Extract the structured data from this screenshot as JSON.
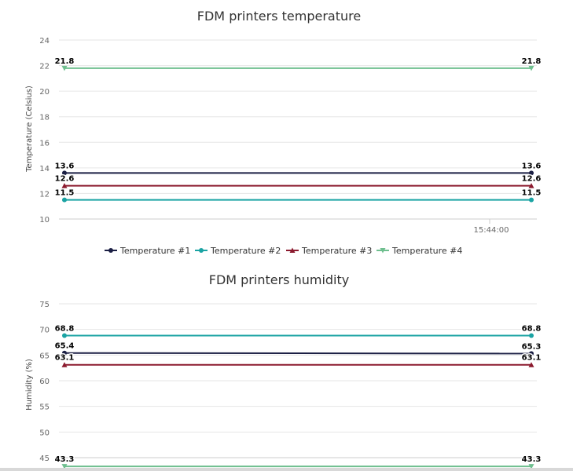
{
  "chart_data": [
    {
      "type": "line",
      "title": "FDM printers temperature",
      "ylabel": "Temperature (Celsius)",
      "xlabel": "",
      "ylim": [
        10,
        24
      ],
      "y_ticks": [
        10,
        12,
        14,
        16,
        18,
        20,
        22,
        24
      ],
      "x_tick_labels": [
        "15:44:00"
      ],
      "grid": true,
      "legend_position": "bottom",
      "series": [
        {
          "name": "Temperature #1",
          "values": [
            13.6,
            13.6
          ],
          "color": "#1b1f44",
          "marker": "circle"
        },
        {
          "name": "Temperature #2",
          "values": [
            11.5,
            11.5
          ],
          "color": "#1aa3a3",
          "marker": "circle"
        },
        {
          "name": "Temperature #3",
          "values": [
            12.6,
            12.6
          ],
          "color": "#8b1a2e",
          "marker": "triangle"
        },
        {
          "name": "Temperature #4",
          "values": [
            21.8,
            21.8
          ],
          "color": "#6fbf8f",
          "marker": "triangle-down"
        }
      ]
    },
    {
      "type": "line",
      "title": "FDM printers humidity",
      "ylabel": "Humidity (%)",
      "xlabel": "",
      "ylim": [
        45,
        75
      ],
      "y_ticks": [
        45,
        50,
        55,
        60,
        65,
        70,
        75
      ],
      "grid": true,
      "series": [
        {
          "name": "Temperature #1",
          "values": [
            65.4,
            65.3
          ],
          "color": "#1b1f44",
          "marker": "circle"
        },
        {
          "name": "Temperature #2",
          "values": [
            68.8,
            68.8
          ],
          "color": "#1aa3a3",
          "marker": "circle"
        },
        {
          "name": "Temperature #3",
          "values": [
            63.1,
            63.1
          ],
          "color": "#8b1a2e",
          "marker": "triangle"
        },
        {
          "name": "Temperature #4",
          "values": [
            43.3,
            43.3
          ],
          "color": "#6fbf8f",
          "marker": "triangle-down"
        }
      ]
    }
  ]
}
